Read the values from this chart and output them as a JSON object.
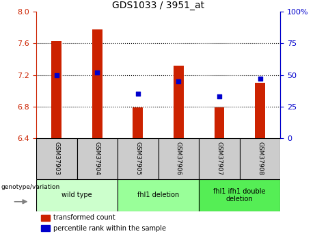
{
  "title": "GDS1033 / 3951_at",
  "samples": [
    "GSM37903",
    "GSM37904",
    "GSM37905",
    "GSM37906",
    "GSM37907",
    "GSM37908"
  ],
  "transformed_counts": [
    7.63,
    7.78,
    6.79,
    7.32,
    6.79,
    7.1
  ],
  "percentile_ranks": [
    50,
    52,
    35,
    45,
    33,
    47
  ],
  "ylim_left": [
    6.4,
    8.0
  ],
  "ylim_right": [
    0,
    100
  ],
  "yticks_left": [
    6.4,
    6.8,
    7.2,
    7.6,
    8.0
  ],
  "yticks_right": [
    0,
    25,
    50,
    75,
    100
  ],
  "groups": [
    {
      "label": "wild type",
      "indices": [
        0,
        1
      ],
      "color": "#ccffcc"
    },
    {
      "label": "fhl1 deletion",
      "indices": [
        2,
        3
      ],
      "color": "#99ff99"
    },
    {
      "label": "fhl1 ifh1 double\ndeletion",
      "indices": [
        4,
        5
      ],
      "color": "#55ee55"
    }
  ],
  "bar_color": "#cc2200",
  "dot_color": "#0000cc",
  "bar_width": 0.25,
  "tick_label_color_left": "#cc2200",
  "tick_label_color_right": "#0000cc",
  "legend_items": [
    {
      "label": "transformed count",
      "color": "#cc2200"
    },
    {
      "label": "percentile rank within the sample",
      "color": "#0000cc"
    }
  ],
  "xlabel_text": "genotype/variation",
  "sample_box_color": "#cccccc"
}
